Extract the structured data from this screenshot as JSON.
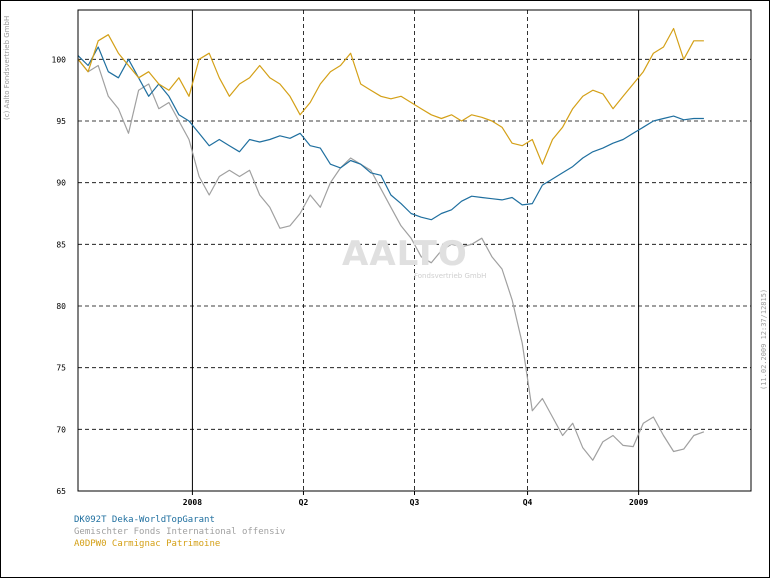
{
  "copyright": "(c) Aalto Fondsvertrieb GmbH",
  "datestamp": "(11.02.2009 12:37/12815)",
  "watermark": {
    "main": "AALTO",
    "sub": "Fondsvertrieb GmbH"
  },
  "chart_data": {
    "type": "line",
    "ylim": [
      65,
      104
    ],
    "xlim": [
      0,
      100
    ],
    "y_ticks": [
      65,
      70,
      75,
      80,
      85,
      90,
      95,
      100
    ],
    "x_ticks": [
      {
        "label": "2008",
        "x": 17.0,
        "solid": true
      },
      {
        "label": "Q2",
        "x": 33.5,
        "solid": false
      },
      {
        "label": "Q3",
        "x": 50.0,
        "solid": false
      },
      {
        "label": "Q4",
        "x": 66.8,
        "solid": false
      },
      {
        "label": "2009",
        "x": 83.3,
        "solid": true
      }
    ],
    "grid": true,
    "legend_position": "bottom-left",
    "series": [
      {
        "name": "DK092T Deka-WorldTopGarant",
        "color": "#1f6f9f",
        "x": [
          0,
          1.5,
          3,
          4.5,
          6,
          7.5,
          9,
          10.5,
          12,
          13.5,
          15,
          16.5,
          18,
          19.5,
          21,
          22.5,
          24,
          25.5,
          27,
          28.5,
          30,
          31.5,
          33,
          34.5,
          36,
          37.5,
          39,
          40.5,
          42,
          43.5,
          45,
          46.5,
          48,
          49.5,
          51,
          52.5,
          54,
          55.5,
          57,
          58.5,
          60,
          61.5,
          63,
          64.5,
          66,
          67.5,
          69,
          70.5,
          72,
          73.5,
          75,
          76.5,
          78,
          79.5,
          81,
          82.5,
          84,
          85.5,
          87,
          88.5,
          90,
          91.5,
          93
        ],
        "y": [
          100.3,
          99.5,
          101.0,
          99.0,
          98.5,
          100.0,
          98.5,
          97.0,
          98.0,
          97.0,
          95.5,
          95.0,
          94.0,
          93.0,
          93.5,
          93.0,
          92.5,
          93.5,
          93.3,
          93.5,
          93.8,
          93.6,
          94.0,
          93.0,
          92.8,
          91.5,
          91.2,
          91.8,
          91.5,
          90.8,
          90.6,
          89.0,
          88.3,
          87.5,
          87.2,
          87.0,
          87.5,
          87.8,
          88.5,
          88.9,
          88.8,
          88.7,
          88.6,
          88.8,
          88.2,
          88.3,
          89.8,
          90.3,
          90.8,
          91.3,
          92.0,
          92.5,
          92.8,
          93.2,
          93.5,
          94.0,
          94.5,
          95.0,
          95.2,
          95.4,
          95.1,
          95.2,
          95.2
        ]
      },
      {
        "name": "Gemischter Fonds International offensiv",
        "color": "#a0a0a0",
        "x": [
          0,
          1.5,
          3,
          4.5,
          6,
          7.5,
          9,
          10.5,
          12,
          13.5,
          15,
          16.5,
          18,
          19.5,
          21,
          22.5,
          24,
          25.5,
          27,
          28.5,
          30,
          31.5,
          33,
          34.5,
          36,
          37.5,
          39,
          40.5,
          42,
          43.5,
          45,
          46.5,
          48,
          49.5,
          51,
          52.5,
          54,
          55.5,
          57,
          58.5,
          60,
          61.5,
          63,
          64.5,
          66,
          67.5,
          69,
          70.5,
          72,
          73.5,
          75,
          76.5,
          78,
          79.5,
          81,
          82.5,
          84,
          85.5,
          87,
          88.5,
          90,
          91.5,
          93
        ],
        "y": [
          100.0,
          99.0,
          99.5,
          97.0,
          96.0,
          94.0,
          97.5,
          98.0,
          96.0,
          96.5,
          95.0,
          93.5,
          90.5,
          89.0,
          90.5,
          91.0,
          90.5,
          91.0,
          89.0,
          88.0,
          86.3,
          86.5,
          87.5,
          89.0,
          88.0,
          90.0,
          91.2,
          92.0,
          91.5,
          91.0,
          89.5,
          88.0,
          86.5,
          85.5,
          84.0,
          83.5,
          84.5,
          85.0,
          84.8,
          85.0,
          85.5,
          84.0,
          83.0,
          80.5,
          77.0,
          71.5,
          72.5,
          71.0,
          69.5,
          70.5,
          68.5,
          67.5,
          69.0,
          69.5,
          68.7,
          68.6,
          70.5,
          71.0,
          69.5,
          68.2,
          68.4,
          69.5,
          69.8
        ]
      },
      {
        "name": "A0DPW0 Carmignac Patrimoine",
        "color": "#d4a017",
        "x": [
          0,
          1.5,
          3,
          4.5,
          6,
          7.5,
          9,
          10.5,
          12,
          13.5,
          15,
          16.5,
          18,
          19.5,
          21,
          22.5,
          24,
          25.5,
          27,
          28.5,
          30,
          31.5,
          33,
          34.5,
          36,
          37.5,
          39,
          40.5,
          42,
          43.5,
          45,
          46.5,
          48,
          49.5,
          51,
          52.5,
          54,
          55.5,
          57,
          58.5,
          60,
          61.5,
          63,
          64.5,
          66,
          67.5,
          69,
          70.5,
          72,
          73.5,
          75,
          76.5,
          78,
          79.5,
          81,
          82.5,
          84,
          85.5,
          87,
          88.5,
          90,
          91.5,
          93
        ],
        "y": [
          100.0,
          99.0,
          101.5,
          102.0,
          100.5,
          99.5,
          98.5,
          99.0,
          98.0,
          97.5,
          98.5,
          97.0,
          100.0,
          100.5,
          98.5,
          97.0,
          98.0,
          98.5,
          99.5,
          98.5,
          98.0,
          97.0,
          95.5,
          96.5,
          98.0,
          99.0,
          99.5,
          100.5,
          98.0,
          97.5,
          97.0,
          96.8,
          97.0,
          96.5,
          96.0,
          95.5,
          95.2,
          95.5,
          95.0,
          95.5,
          95.3,
          95.0,
          94.5,
          93.2,
          93.0,
          93.5,
          91.5,
          93.5,
          94.5,
          96.0,
          97.0,
          97.5,
          97.2,
          96.0,
          97.0,
          98.0,
          99.0,
          100.5,
          101.0,
          102.5,
          100.0,
          101.5,
          101.5
        ]
      }
    ]
  }
}
